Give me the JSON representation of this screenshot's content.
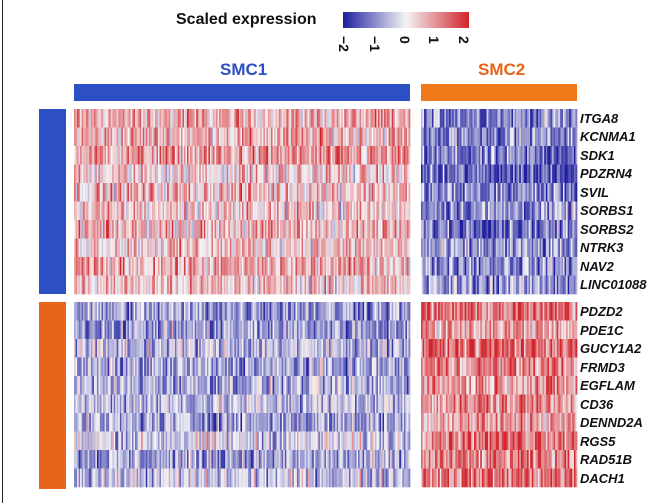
{
  "chart_data": {
    "type": "heatmap",
    "legend": {
      "title": "Scaled expression",
      "ticks": [
        "−2",
        "−1",
        "0",
        "1",
        "2"
      ],
      "range": [
        -2,
        2
      ],
      "colors": {
        "low": "#1f1f9e",
        "mid": "#f4f4f6",
        "high": "#d1242b"
      }
    },
    "column_groups": [
      {
        "name": "SMC1",
        "color": "#2c4fc4",
        "label_color": "#2c4fc4",
        "n_cells": 220
      },
      {
        "name": "SMC2",
        "color": "#f07a1a",
        "label_color": "#e8641a",
        "n_cells": 100
      }
    ],
    "row_groups": [
      {
        "color": "#2c4fc4",
        "genes": [
          "ITGA8",
          "KCNMA1",
          "SDK1",
          "PDZRN4",
          "SVIL",
          "SORBS1",
          "SORBS2",
          "NTRK3",
          "NAV2",
          "LINC01088"
        ],
        "mean_smc1": 0.55,
        "mean_smc2": -1.1
      },
      {
        "color": "#e8641a",
        "genes": [
          "PDZD2",
          "PDE1C",
          "GUCY1A2",
          "FRMD3",
          "EGFLAM",
          "CD36",
          "DENND2A",
          "RGS5",
          "RAD51B",
          "DACH1"
        ],
        "mean_smc1": -0.55,
        "mean_smc2": 1.15
      }
    ]
  }
}
